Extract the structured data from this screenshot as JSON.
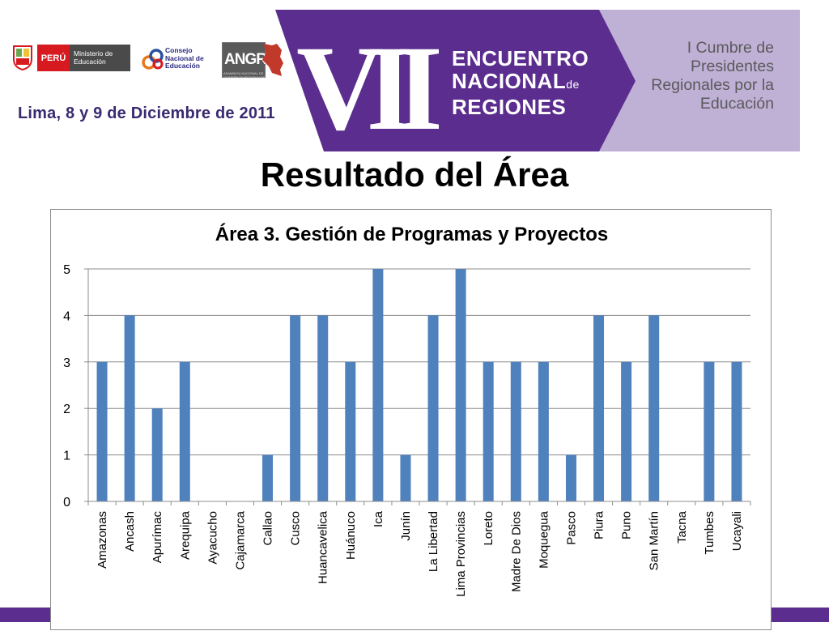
{
  "header": {
    "logos": {
      "peru_label": "PERÚ",
      "minedu_label": "Ministerio de Educación",
      "cne_label": "Consejo Nacional de Educación",
      "angr_label": "ANGR",
      "angr_sublabel": "ASAMBLEA NACIONAL DE GOBIERNOS REGIONALES"
    },
    "event_date": "Lima, 8 y 9 de Diciembre de 2011",
    "banner": {
      "numeral": "VII",
      "line1": "ENCUENTRO",
      "line2": "NACIONAL",
      "line2_suffix": "de",
      "line3": "REGIONES",
      "side_text": "I Cumbre de Presidentes Regionales por la Educación"
    },
    "colors": {
      "banner_purple": "#5b2d8e",
      "banner_lavender": "#bfb0d6",
      "bar_blue": "#4f81bd"
    }
  },
  "page_title": "Resultado del Área",
  "chart_data": {
    "type": "bar",
    "title": "Área 3. Gestión de Programas y Proyectos",
    "xlabel": "",
    "ylabel": "",
    "ylim": [
      0,
      5
    ],
    "yticks": [
      0,
      1,
      2,
      3,
      4,
      5
    ],
    "grid": true,
    "legend": "none",
    "categories": [
      "Amazonas",
      "Ancash",
      "Apurímac",
      "Arequipa",
      "Ayacucho",
      "Cajamarca",
      "Callao",
      "Cusco",
      "Huancavelica",
      "Huánuco",
      "Ica",
      "Junín",
      "La Libertad",
      "Lima Provincias",
      "Loreto",
      "Madre De Dios",
      "Moquegua",
      "Pasco",
      "Piura",
      "Puno",
      "San Martín",
      "Tacna",
      "Tumbes",
      "Ucayali"
    ],
    "values": [
      3,
      4,
      2,
      3,
      0,
      0,
      1,
      4,
      4,
      3,
      5,
      1,
      4,
      5,
      3,
      3,
      3,
      1,
      4,
      3,
      4,
      0,
      3,
      3
    ]
  }
}
